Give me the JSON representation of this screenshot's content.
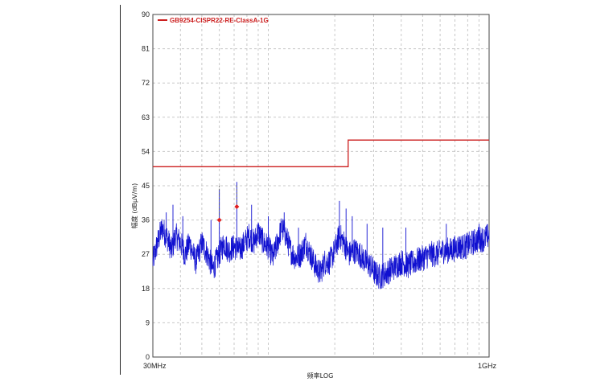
{
  "chart_data": {
    "type": "line",
    "x_scale": "log",
    "xlim": [
      "30MHz",
      "1GHz"
    ],
    "ylim": [
      0,
      90
    ],
    "y_ticks": [
      "90",
      "81",
      "72",
      "63",
      "54",
      "45",
      "36",
      "27",
      "18",
      "9",
      "0"
    ],
    "x_tick_labels": [
      "30MHz",
      "1GHz"
    ],
    "xlabel": "频率LOG",
    "ylabel": "幅度 (dBμV/m)",
    "grid": true,
    "legend_position": "top-left",
    "series": [
      {
        "name": "GB9254-CISPR22-RE-ClassA-1G",
        "kind": "limit",
        "color": "#cc1f1f",
        "points": [
          [
            30,
            50
          ],
          [
            230,
            50
          ],
          [
            230,
            57
          ],
          [
            1000,
            57
          ]
        ]
      },
      {
        "kind": "measurement",
        "color": "#1010d0",
        "points": [
          [
            30,
            25
          ],
          [
            31.5,
            30
          ],
          [
            33,
            34
          ],
          [
            35,
            31
          ],
          [
            36.5,
            28
          ],
          [
            38,
            32
          ],
          [
            40,
            30
          ],
          [
            42,
            27
          ],
          [
            44,
            30
          ],
          [
            47,
            25
          ],
          [
            50,
            30
          ],
          [
            53,
            27
          ],
          [
            56,
            23
          ],
          [
            60,
            27
          ],
          [
            63,
            30
          ],
          [
            66,
            28
          ],
          [
            70,
            29
          ],
          [
            74,
            28
          ],
          [
            78,
            30
          ],
          [
            82,
            32
          ],
          [
            86,
            30
          ],
          [
            90,
            33
          ],
          [
            95,
            30
          ],
          [
            100,
            29
          ],
          [
            105,
            26
          ],
          [
            110,
            30
          ],
          [
            115,
            34
          ],
          [
            120,
            32
          ],
          [
            126,
            28
          ],
          [
            133,
            26
          ],
          [
            140,
            27
          ],
          [
            148,
            30
          ],
          [
            155,
            27
          ],
          [
            163,
            24
          ],
          [
            172,
            22
          ],
          [
            180,
            25
          ],
          [
            190,
            25
          ],
          [
            200,
            28
          ],
          [
            210,
            32
          ],
          [
            220,
            30
          ],
          [
            232,
            27
          ],
          [
            245,
            28
          ],
          [
            260,
            27
          ],
          [
            275,
            25
          ],
          [
            290,
            24
          ],
          [
            305,
            22
          ],
          [
            320,
            21
          ],
          [
            340,
            22
          ],
          [
            360,
            23
          ],
          [
            380,
            24
          ],
          [
            400,
            25
          ],
          [
            430,
            24
          ],
          [
            460,
            25
          ],
          [
            500,
            26
          ],
          [
            540,
            27
          ],
          [
            580,
            27
          ],
          [
            620,
            28
          ],
          [
            670,
            28
          ],
          [
            720,
            29
          ],
          [
            780,
            29
          ],
          [
            840,
            30
          ],
          [
            900,
            31
          ],
          [
            950,
            31
          ],
          [
            1000,
            32
          ]
        ],
        "spikes": [
          [
            34.5,
            38
          ],
          [
            37,
            40
          ],
          [
            41,
            37
          ],
          [
            55,
            36
          ],
          [
            60,
            44
          ],
          [
            72,
            46
          ],
          [
            84,
            40
          ],
          [
            100,
            37
          ],
          [
            118,
            38
          ],
          [
            137,
            34
          ],
          [
            210,
            41
          ],
          [
            225,
            39
          ],
          [
            240,
            37
          ],
          [
            280,
            35
          ],
          [
            330,
            34
          ],
          [
            420,
            34
          ],
          [
            640,
            35
          ],
          [
            900,
            35
          ]
        ]
      }
    ],
    "markers": [
      [
        60,
        36
      ],
      [
        72,
        39.5
      ]
    ]
  }
}
